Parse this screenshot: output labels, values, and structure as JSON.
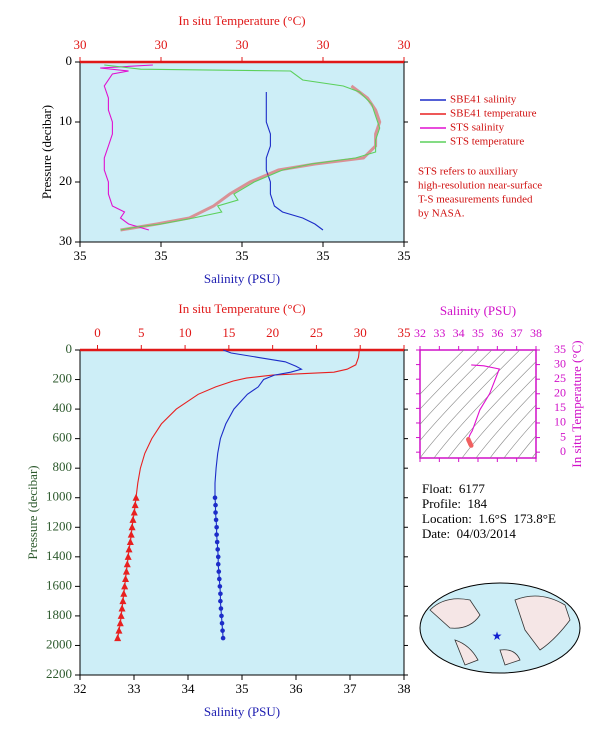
{
  "chart_data": [
    {
      "type": "profile",
      "x2label": "In situ Temperature (°C)",
      "x2lim": [
        29.6,
        30.4
      ],
      "x2ticks": [
        {
          "value": 29.6,
          "label": "30"
        },
        {
          "value": 29.8,
          "label": "30"
        },
        30,
        {
          "value": 30.2,
          "label": "30"
        },
        {
          "value": 30.4,
          "label": "30"
        }
      ],
      "xlabel": "Salinity (PSU)",
      "xlim": [
        34.6,
        35.4
      ],
      "xticks": [
        {
          "value": 34.6,
          "label": "35"
        },
        {
          "value": 34.8,
          "label": "35"
        },
        35,
        {
          "value": 35.2,
          "label": "35"
        },
        {
          "value": 35.4,
          "label": "35"
        }
      ],
      "ylabel": "Pressure (decibar)",
      "ylim": [
        0,
        30
      ],
      "yticks": [
        0,
        10,
        20,
        30
      ],
      "y_inverted": true,
      "axis_colors": {
        "x": "#1c1cb0",
        "x2": "#e01818",
        "y": "#000000"
      },
      "legend": "right",
      "series": [
        {
          "name": "SBE41 salinity",
          "color": "#1c2cc8",
          "axis": "x",
          "pressure": [
            5,
            8,
            10,
            12,
            14,
            16,
            18,
            20,
            22,
            24,
            25,
            26,
            27,
            28
          ],
          "values": [
            35.06,
            35.06,
            35.06,
            35.07,
            35.07,
            35.06,
            35.06,
            35.07,
            35.07,
            35.08,
            35.1,
            35.15,
            35.18,
            35.2
          ]
        },
        {
          "name": "SBE41 temperature",
          "color": "#e82020",
          "axis": "x2",
          "pressure": [
            4,
            6,
            8,
            10,
            12,
            14,
            16,
            17,
            18,
            20,
            22,
            24,
            26,
            27,
            28
          ],
          "values": [
            30.27,
            30.31,
            30.33,
            30.34,
            30.33,
            30.33,
            30.3,
            30.18,
            30.09,
            30.02,
            29.97,
            29.93,
            29.87,
            29.79,
            29.7
          ]
        },
        {
          "name": "STS salinity",
          "color": "#e010d0",
          "axis": "x",
          "pressure": [
            0.5,
            1,
            1.5,
            2,
            4,
            6,
            8,
            10,
            12,
            14,
            16,
            18,
            20,
            22,
            24,
            25,
            26,
            27,
            28
          ],
          "values": [
            34.78,
            34.65,
            34.72,
            34.68,
            34.66,
            34.67,
            34.67,
            34.68,
            34.68,
            34.67,
            34.66,
            34.66,
            34.67,
            34.67,
            34.68,
            34.71,
            34.7,
            34.72,
            34.77
          ]
        },
        {
          "name": "STS temperature",
          "color": "#5cd05c",
          "axis": "x2",
          "pressure": [
            0.5,
            1.2,
            1.5,
            3,
            4,
            5,
            7,
            9,
            11,
            13,
            15,
            16,
            17,
            18,
            20,
            22,
            23,
            24,
            25,
            26,
            27,
            27.5,
            28
          ],
          "values": [
            29.66,
            29.75,
            30.12,
            30.15,
            30.25,
            30.29,
            30.32,
            30.33,
            30.34,
            30.33,
            30.33,
            30.28,
            30.17,
            30.1,
            30.03,
            29.98,
            29.99,
            29.94,
            29.95,
            29.88,
            29.8,
            29.74,
            29.7
          ]
        }
      ],
      "note": [
        "STS refers to auxiliary",
        "high-resolution near-surface",
        "T-S measurements funded",
        "by NASA."
      ]
    },
    {
      "type": "profile",
      "x2label": "In situ Temperature (°C)",
      "x2lim": [
        -2,
        35
      ],
      "x2ticks": [
        0,
        5,
        10,
        15,
        20,
        25,
        30,
        35
      ],
      "xlabel": "Salinity (PSU)",
      "xlim": [
        32,
        38
      ],
      "xticks": [
        32,
        33,
        34,
        35,
        36,
        37,
        38
      ],
      "ylabel": "Pressure (decibar)",
      "ylim": [
        0,
        2200
      ],
      "yticks": [
        0,
        200,
        400,
        600,
        800,
        1000,
        1200,
        1400,
        1600,
        1800,
        2000,
        2200
      ],
      "y_inverted": true,
      "axis_colors": {
        "x": "#1c1cb0",
        "x2": "#e01818",
        "y": "#2e5a2e"
      },
      "series": [
        {
          "color": "#e82020",
          "axis": "x2",
          "pressure": [
            0,
            50,
            100,
            130,
            150,
            170,
            190,
            210,
            250,
            300,
            400,
            500,
            600,
            700,
            800,
            900,
            1000
          ],
          "values": [
            29.9,
            29.8,
            29.5,
            28.5,
            27,
            20,
            17,
            15.5,
            13.5,
            11.5,
            9.0,
            7.3,
            6.2,
            5.4,
            4.9,
            4.6,
            4.4
          ]
        },
        {
          "color": "#e82020",
          "axis": "x2",
          "marker": "triangle",
          "pressure": [
            1000,
            1050,
            1100,
            1150,
            1200,
            1250,
            1300,
            1350,
            1400,
            1450,
            1500,
            1550,
            1600,
            1650,
            1700,
            1750,
            1800,
            1850,
            1900,
            1950
          ],
          "values": [
            4.4,
            4.3,
            4.2,
            4.05,
            3.95,
            3.85,
            3.75,
            3.6,
            3.5,
            3.4,
            3.3,
            3.2,
            3.1,
            3.0,
            2.9,
            2.8,
            2.7,
            2.6,
            2.45,
            2.3
          ]
        },
        {
          "color": "#1c2cc8",
          "axis": "x",
          "pressure": [
            0,
            20,
            50,
            80,
            110,
            130,
            150,
            170,
            200,
            250,
            300,
            400,
            500,
            600,
            700,
            800,
            900,
            1000
          ],
          "values": [
            34.65,
            34.8,
            35.3,
            35.8,
            36.0,
            36.1,
            35.9,
            35.6,
            35.4,
            35.3,
            35.1,
            34.85,
            34.7,
            34.6,
            34.55,
            34.52,
            34.5,
            34.5
          ]
        },
        {
          "color": "#1c2cc8",
          "axis": "x",
          "marker": "circle",
          "pressure": [
            1000,
            1050,
            1100,
            1150,
            1200,
            1250,
            1300,
            1350,
            1400,
            1450,
            1500,
            1550,
            1600,
            1650,
            1700,
            1750,
            1800,
            1850,
            1900,
            1950
          ],
          "values": [
            34.5,
            34.51,
            34.51,
            34.52,
            34.53,
            34.53,
            34.54,
            34.55,
            34.56,
            34.56,
            34.57,
            34.58,
            34.59,
            34.6,
            34.6,
            34.61,
            34.62,
            34.63,
            34.64,
            34.65
          ]
        }
      ]
    },
    {
      "type": "line",
      "xlabel": "Salinity (PSU)",
      "xlim": [
        32,
        38
      ],
      "xticks": [
        32,
        33,
        34,
        35,
        36,
        37,
        38
      ],
      "ylabel": "In situ Temperature (°C)",
      "ylim": [
        -2,
        35
      ],
      "yticks": [
        0,
        5,
        10,
        15,
        20,
        25,
        30,
        35
      ],
      "axis_colors": {
        "x": "#d010c8",
        "y": "#d010c8"
      },
      "series": [
        {
          "color": "#e010d0",
          "x": [
            34.65,
            35.3,
            36.1,
            35.6,
            35.1,
            34.85,
            34.7,
            34.6,
            34.55,
            34.52,
            34.5
          ],
          "values": [
            29.9,
            29.6,
            28.5,
            20,
            14.5,
            10,
            7.3,
            6.2,
            5.4,
            4.9,
            4.4
          ]
        },
        {
          "color": "#f06060",
          "marker": "circle",
          "x": [
            34.5,
            34.52,
            34.55,
            34.58,
            34.6,
            34.62,
            34.65
          ],
          "values": [
            4.4,
            4.0,
            3.6,
            3.2,
            2.9,
            2.6,
            2.3
          ]
        }
      ]
    }
  ],
  "float_info": [
    "Float:  6177",
    "Profile:  184",
    "Location:  1.6°S  173.8°E",
    "Date:  04/03/2014"
  ]
}
